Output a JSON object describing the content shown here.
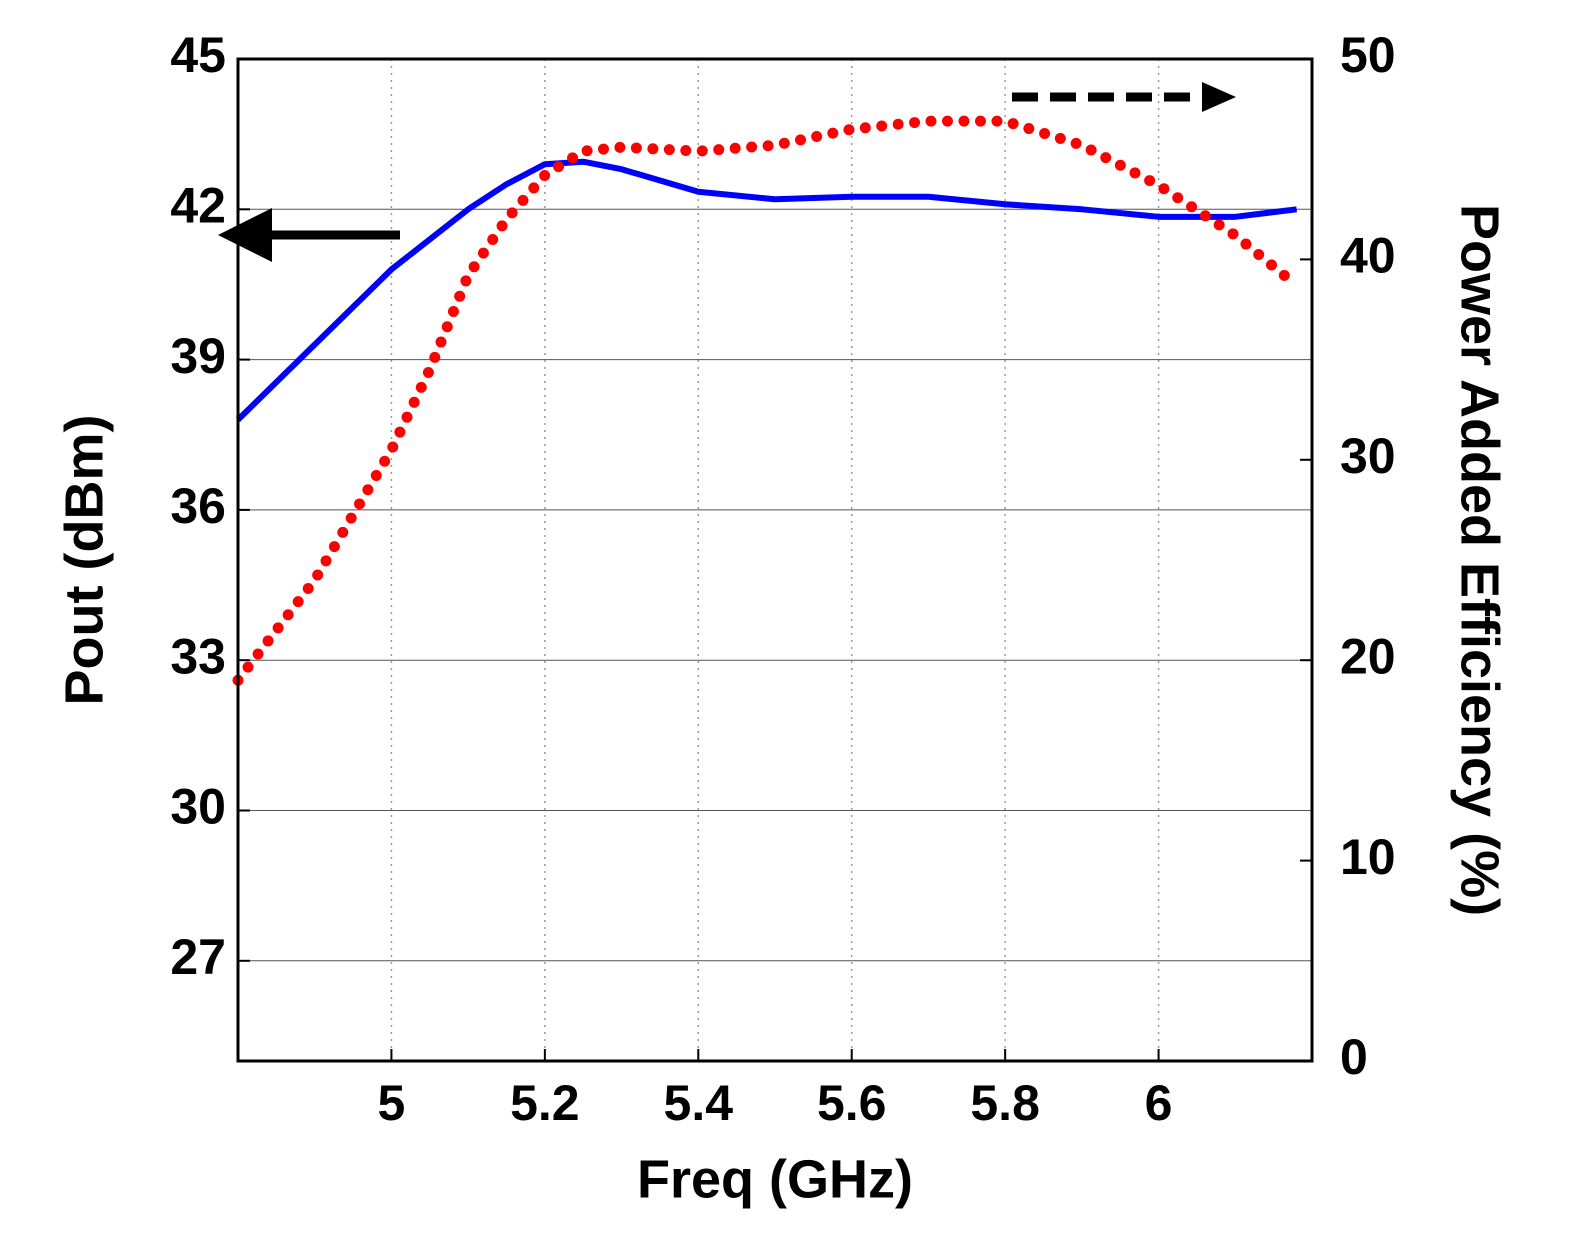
{
  "chart_data": {
    "type": "line",
    "x_label": "Freq (GHz)",
    "y_label": "Pout (dBm)",
    "y2_label": "Power Added Efficiency (%)",
    "xlim": [
      4.8,
      6.2
    ],
    "xticks": [
      5,
      5.2,
      5.4,
      5.6,
      5.8,
      6
    ],
    "ylim": [
      25,
      45
    ],
    "yticks": [
      27,
      30,
      33,
      36,
      39,
      42,
      45
    ],
    "y2lim": [
      0,
      50
    ],
    "y2ticks": [
      0,
      10,
      20,
      30,
      40,
      50
    ],
    "grid": true,
    "x": [
      4.8,
      4.9,
      5.0,
      5.05,
      5.1,
      5.15,
      5.2,
      5.25,
      5.3,
      5.4,
      5.5,
      5.6,
      5.7,
      5.8,
      5.9,
      6.0,
      6.1,
      6.18
    ],
    "series": [
      {
        "name": "Pout",
        "color": "#0000ff",
        "style": "solid",
        "values": [
          37.8,
          39.3,
          40.8,
          41.4,
          42.0,
          42.5,
          42.9,
          42.95,
          42.8,
          42.35,
          42.2,
          42.25,
          42.25,
          42.1,
          42.0,
          41.85,
          41.85,
          42.0
        ]
      },
      {
        "name": "PAE",
        "color": "#ff0000",
        "style": "dotted",
        "axis": "y2",
        "values": [
          19.0,
          24.0,
          30.5,
          34.5,
          39.2,
          42.0,
          44.2,
          45.4,
          45.6,
          45.4,
          45.7,
          46.5,
          46.9,
          46.9,
          45.7,
          43.7,
          41.2,
          38.7
        ]
      }
    ]
  }
}
